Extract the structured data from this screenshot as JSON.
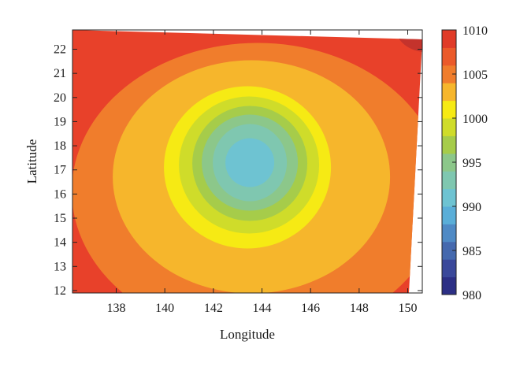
{
  "chart_data": {
    "type": "heatmap",
    "title": "",
    "xlabel": "Longitude",
    "ylabel": "Latitude",
    "xlim": [
      136.2,
      150.6
    ],
    "ylim": [
      11.9,
      22.8
    ],
    "x_ticks": [
      138,
      140,
      142,
      144,
      146,
      148,
      150
    ],
    "y_ticks": [
      12,
      13,
      14,
      15,
      16,
      17,
      18,
      19,
      20,
      21,
      22
    ],
    "grid": false,
    "colorbar": {
      "placement": "right",
      "range": [
        980,
        1010
      ],
      "tick_values": [
        980,
        985,
        990,
        995,
        1000,
        1005,
        1010
      ],
      "levels": [
        980,
        982,
        984,
        986,
        988,
        990,
        992,
        994,
        996,
        998,
        1000,
        1002,
        1004,
        1006,
        1008,
        1010
      ],
      "colors": [
        "#2c2f85",
        "#3a489a",
        "#4569ae",
        "#4f8ac5",
        "#5aaed8",
        "#6ec3d2",
        "#7fc7b0",
        "#8cc78a",
        "#a6cc4a",
        "#cfdc2a",
        "#f6ea14",
        "#f6b62c",
        "#f07d2c",
        "#eb5a2a",
        "#e03b28",
        "#b5302c"
      ]
    },
    "field": {
      "description": "sea level pressure contour field (hPa)",
      "center": {
        "lon": 143.5,
        "lat": 17.3,
        "value": 991
      },
      "contours": [
        {
          "min_value": 1004,
          "max_value": 1006,
          "color": "#f07d2c"
        },
        {
          "min_value": 1002,
          "max_value": 1004,
          "color": "#f6b62c"
        },
        {
          "min_value": 1000,
          "max_value": 1002,
          "color": "#f6ea14"
        },
        {
          "min_value": 998,
          "max_value": 1000,
          "color": "#cfdc2a"
        },
        {
          "min_value": 996,
          "max_value": 998,
          "color": "#a6cc4a"
        },
        {
          "min_value": 994,
          "max_value": 996,
          "color": "#8cc78a"
        },
        {
          "min_value": 992,
          "max_value": 994,
          "color": "#7fc7b0"
        },
        {
          "min_value": 990,
          "max_value": 992,
          "color": "#6ec3d2"
        }
      ],
      "background_value": 1006,
      "background_color": "#e8412a",
      "corner_max": {
        "lon": 150.2,
        "lat": 22.6,
        "value": 1008,
        "color": "#c4332c"
      }
    }
  }
}
